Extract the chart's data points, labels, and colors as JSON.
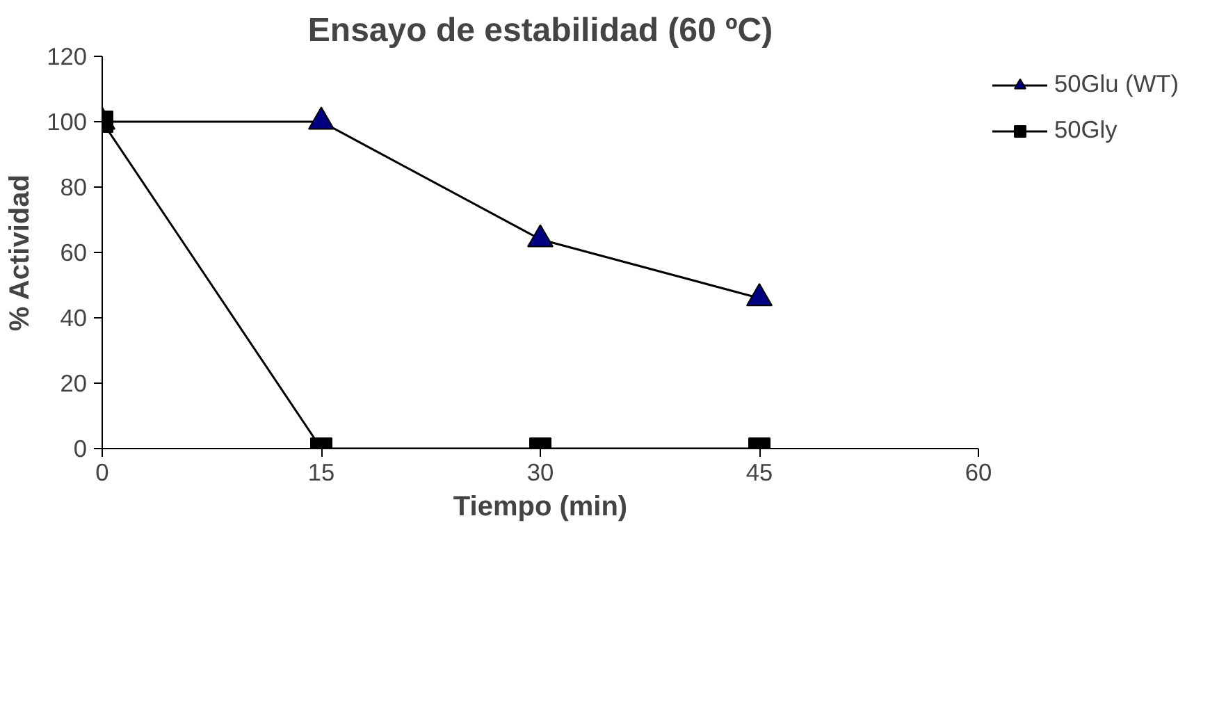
{
  "chart_data": {
    "type": "line",
    "title": "Ensayo de estabilidad (60 ºC)",
    "xlabel": "Tiempo (min)",
    "ylabel": "% Actividad",
    "x": [
      0,
      15,
      30,
      45
    ],
    "series": [
      {
        "name": "50Glu (WT)",
        "color": "#000080",
        "marker": "triangle",
        "values": [
          100,
          100,
          64,
          46
        ]
      },
      {
        "name": "50Gly",
        "color": "#000000",
        "marker": "square",
        "values": [
          100,
          0,
          0,
          0
        ]
      }
    ],
    "xlim": [
      0,
      60
    ],
    "xticks": [
      0,
      15,
      30,
      45,
      60
    ],
    "ylim": [
      0,
      120
    ],
    "yticks": [
      0,
      20,
      40,
      60,
      80,
      100,
      120
    ],
    "grid": false,
    "legend": "top right",
    "line_style": "solid"
  }
}
